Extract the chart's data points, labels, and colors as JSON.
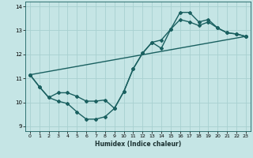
{
  "xlabel": "Humidex (Indice chaleur)",
  "xlim": [
    -0.5,
    23.5
  ],
  "ylim": [
    8.8,
    14.2
  ],
  "yticks": [
    9,
    10,
    11,
    12,
    13,
    14
  ],
  "xticks": [
    0,
    1,
    2,
    3,
    4,
    5,
    6,
    7,
    8,
    9,
    10,
    11,
    12,
    13,
    14,
    15,
    16,
    17,
    18,
    19,
    20,
    21,
    22,
    23
  ],
  "background_color": "#c5e5e5",
  "grid_color": "#a8d0d0",
  "line_color": "#1a6060",
  "line_width": 1.0,
  "marker": "D",
  "marker_size": 2.0,
  "line1_x": [
    0,
    1,
    2,
    3,
    4,
    5,
    6,
    7,
    8,
    9,
    10,
    11,
    12,
    13,
    14,
    15,
    16,
    17,
    18,
    19,
    20,
    21,
    22,
    23
  ],
  "line1_y": [
    11.15,
    10.65,
    10.2,
    10.05,
    9.95,
    9.6,
    9.3,
    9.3,
    9.4,
    9.75,
    10.45,
    11.4,
    12.05,
    12.5,
    12.6,
    13.05,
    13.75,
    13.75,
    13.35,
    13.45,
    13.1,
    12.9,
    12.85,
    12.75
  ],
  "line2_x": [
    0,
    23
  ],
  "line2_y": [
    11.15,
    12.75
  ],
  "line3_x": [
    0,
    1,
    2,
    3,
    4,
    5,
    6,
    7,
    8,
    9,
    10,
    11,
    12,
    13,
    14,
    15,
    16,
    17,
    18,
    19,
    20,
    21,
    22,
    23
  ],
  "line3_y": [
    11.15,
    10.65,
    10.2,
    10.4,
    10.4,
    10.25,
    10.05,
    10.05,
    10.1,
    9.75,
    10.45,
    11.4,
    12.05,
    12.5,
    12.25,
    13.05,
    13.45,
    13.35,
    13.2,
    13.35,
    13.1,
    12.9,
    12.85,
    12.75
  ]
}
